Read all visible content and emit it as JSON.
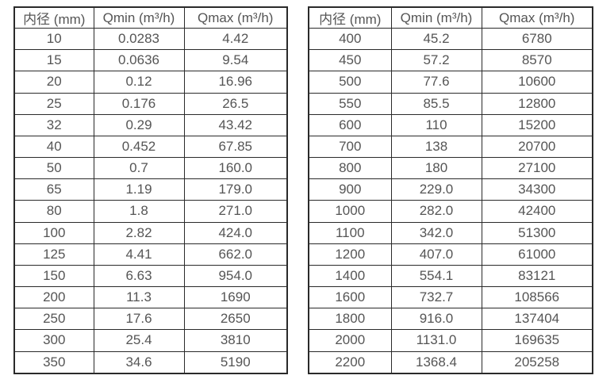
{
  "page": {
    "background": "#ffffff",
    "border_color": "#2a2a2a",
    "text_color": "#555555"
  },
  "tables": [
    {
      "name": "flow-spec-table-small-diameters",
      "headers": [
        "内径 (mm)",
        "Qmin (m³/h)",
        "Qmax (m³/h)"
      ],
      "rows": [
        [
          "10",
          "0.0283",
          "4.42"
        ],
        [
          "15",
          "0.0636",
          "9.54"
        ],
        [
          "20",
          "0.12",
          "16.96"
        ],
        [
          "25",
          "0.176",
          "26.5"
        ],
        [
          "32",
          "0.29",
          "43.42"
        ],
        [
          "40",
          "0.452",
          "67.85"
        ],
        [
          "50",
          "0.7",
          "160.0"
        ],
        [
          "65",
          "1.19",
          "179.0"
        ],
        [
          "80",
          "1.8",
          "271.0"
        ],
        [
          "100",
          "2.82",
          "424.0"
        ],
        [
          "125",
          "4.41",
          "662.0"
        ],
        [
          "150",
          "6.63",
          "954.0"
        ],
        [
          "200",
          "11.3",
          "1690"
        ],
        [
          "250",
          "17.6",
          "2650"
        ],
        [
          "300",
          "25.4",
          "3810"
        ],
        [
          "350",
          "34.6",
          "5190"
        ]
      ]
    },
    {
      "name": "flow-spec-table-large-diameters",
      "headers": [
        "内径 (mm)",
        "Qmin (m³/h)",
        "Qmax (m³/h)"
      ],
      "rows": [
        [
          "400",
          "45.2",
          "6780"
        ],
        [
          "450",
          "57.2",
          "8570"
        ],
        [
          "500",
          "77.6",
          "10600"
        ],
        [
          "550",
          "85.5",
          "12800"
        ],
        [
          "600",
          "110",
          "15200"
        ],
        [
          "700",
          "138",
          "20700"
        ],
        [
          "800",
          "180",
          "27100"
        ],
        [
          "900",
          "229.0",
          "34300"
        ],
        [
          "1000",
          "282.0",
          "42400"
        ],
        [
          "1100",
          "342.0",
          "51300"
        ],
        [
          "1200",
          "407.0",
          "61000"
        ],
        [
          "1400",
          "554.1",
          "83121"
        ],
        [
          "1600",
          "732.7",
          "108566"
        ],
        [
          "1800",
          "916.0",
          "137404"
        ],
        [
          "2000",
          "1131.0",
          "169635"
        ],
        [
          "2200",
          "1368.4",
          "205258"
        ]
      ]
    }
  ]
}
